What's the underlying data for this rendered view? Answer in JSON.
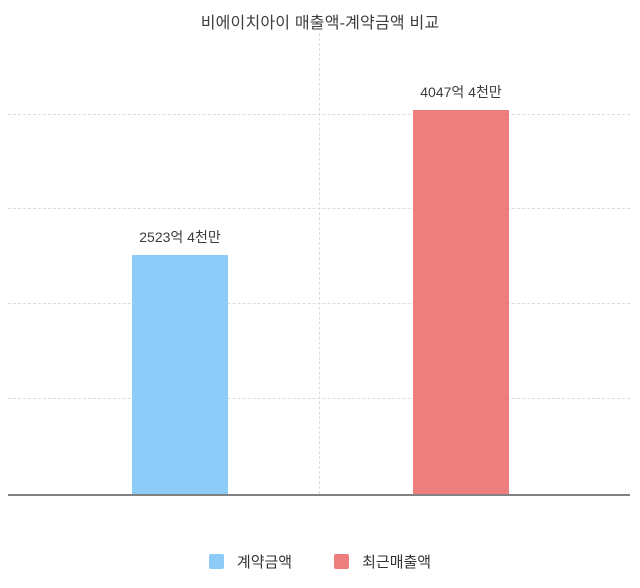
{
  "title": "비에이치아이 매출액-계약금액 비교",
  "chart_data": {
    "type": "bar",
    "title": "비에이치아이 매출액-계약금액 비교",
    "categories": [
      "계약금액",
      "최근매출액"
    ],
    "values": [
      2523.4,
      4047.4
    ],
    "value_labels": [
      "2523억 4천만",
      "4047억 4천만"
    ],
    "unit": "억",
    "xlabel": "",
    "ylabel": "",
    "ylim": [
      0,
      4860
    ],
    "gridline_values": [
      1000,
      2000,
      3000,
      4000
    ],
    "grid": "dashed-horizontal",
    "legend_position": "bottom",
    "series_colors": [
      "#8DCCF8",
      "#EE7D7E"
    ]
  },
  "legend": {
    "items": [
      {
        "label": "계약금액",
        "color": "#8DCCF8"
      },
      {
        "label": "최근매출액",
        "color": "#EE7D7E"
      }
    ]
  },
  "colors": {
    "axis": "#818181",
    "gridline": "#DCDCDC",
    "title_text": "#3D3D3D",
    "label_text": "#3C3C3C"
  }
}
